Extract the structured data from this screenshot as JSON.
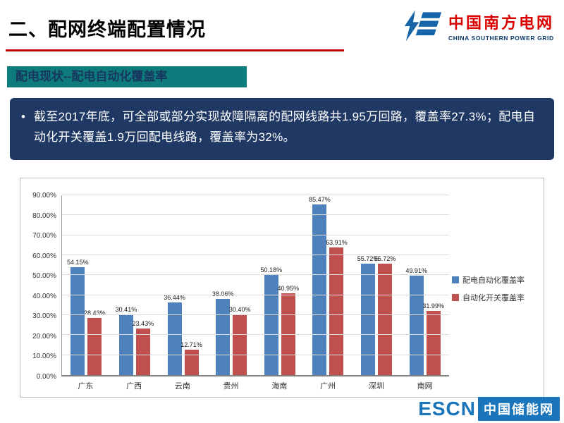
{
  "header": {
    "title": "二、配网终端配置情况",
    "logo": {
      "name_cn": "中国南方电网",
      "name_en": "CHINA SOUTHERN POWER GRID"
    }
  },
  "section": {
    "label": "配电现状--配电自动化覆盖率"
  },
  "summary": {
    "bullet": "•",
    "text": "截至2017年底，可全部或部分实现故障隔离的配网线路共1.95万回路，覆盖率27.3%；配电自动化开关覆盖1.9万回配电线路，覆盖率为32%。"
  },
  "chart_data": {
    "type": "bar",
    "categories": [
      "广东",
      "广西",
      "云南",
      "贵州",
      "海南",
      "广州",
      "深圳",
      "南网"
    ],
    "series": [
      {
        "name": "配电自动化覆盖率",
        "color": "#4F81BD",
        "values": [
          54.15,
          30.41,
          36.44,
          38.06,
          50.18,
          85.47,
          55.72,
          49.91
        ]
      },
      {
        "name": "自动化开关覆盖率",
        "color": "#C0504D",
        "values": [
          28.43,
          23.43,
          12.71,
          30.4,
          40.95,
          63.91,
          55.72,
          31.99
        ]
      }
    ],
    "ylim": [
      0,
      90
    ],
    "ytick_step": 10,
    "ytick_labels": [
      "0.00%",
      "10.00%",
      "20.00%",
      "30.00%",
      "40.00%",
      "50.00%",
      "60.00%",
      "70.00%",
      "80.00%",
      "90.00%"
    ],
    "grid": true,
    "legend_position": "right",
    "value_label_format": "0.00%"
  },
  "footer": {
    "escn_en": "ESCN",
    "escn_cn": "中国储能网"
  },
  "colors": {
    "title_underline": "#C00000",
    "section_bg": "#0E7C7C",
    "summary_bg": "#1F3864",
    "bar_blue": "#4F81BD",
    "bar_red": "#C0504D",
    "escn_blue": "#1B75BB",
    "logo_blue": "#1565A8",
    "logo_red": "#D90000"
  }
}
